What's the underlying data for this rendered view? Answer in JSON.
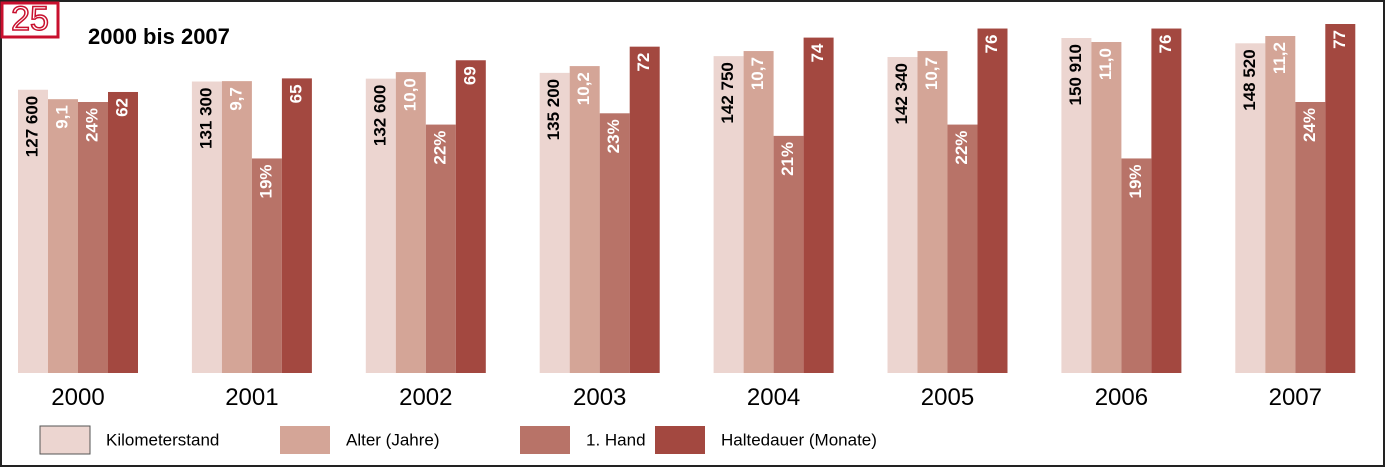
{
  "chart_data": {
    "type": "bar",
    "badge": "25",
    "title": "2000 bis 2007",
    "categories": [
      "2000",
      "2001",
      "2002",
      "2003",
      "2004",
      "2005",
      "2006",
      "2007"
    ],
    "legend": "bottom",
    "series": [
      {
        "name": "Kilometerstand",
        "color": "#ecd5d0",
        "label_color": "#000000",
        "values": [
          127600,
          131300,
          132600,
          135200,
          142750,
          142340,
          150910,
          148520
        ],
        "value_labels": [
          "127 600",
          "131 300",
          "132 600",
          "135 200",
          "142 750",
          "142 340",
          "150 910",
          "148 520"
        ]
      },
      {
        "name": "Alter (Jahre)",
        "color": "#d4a597",
        "label_color": "#ffffff",
        "values": [
          9.1,
          9.7,
          10.0,
          10.2,
          10.7,
          10.7,
          11.0,
          11.2
        ],
        "value_labels": [
          "9,1",
          "9,7",
          "10,0",
          "10,2",
          "10,7",
          "10,7",
          "11,0",
          "11,2"
        ]
      },
      {
        "name": "1. Hand",
        "color": "#b87368",
        "label_color": "#ffffff",
        "values": [
          24,
          19,
          22,
          23,
          21,
          22,
          19,
          24
        ],
        "value_labels": [
          "24%",
          "19%",
          "22%",
          "23%",
          "21%",
          "22%",
          "19%",
          "24%"
        ]
      },
      {
        "name": "Haltedauer (Monate)",
        "color": "#a34840",
        "label_color": "#ffffff",
        "values": [
          62,
          65,
          69,
          72,
          74,
          76,
          76,
          77
        ]
      }
    ]
  }
}
